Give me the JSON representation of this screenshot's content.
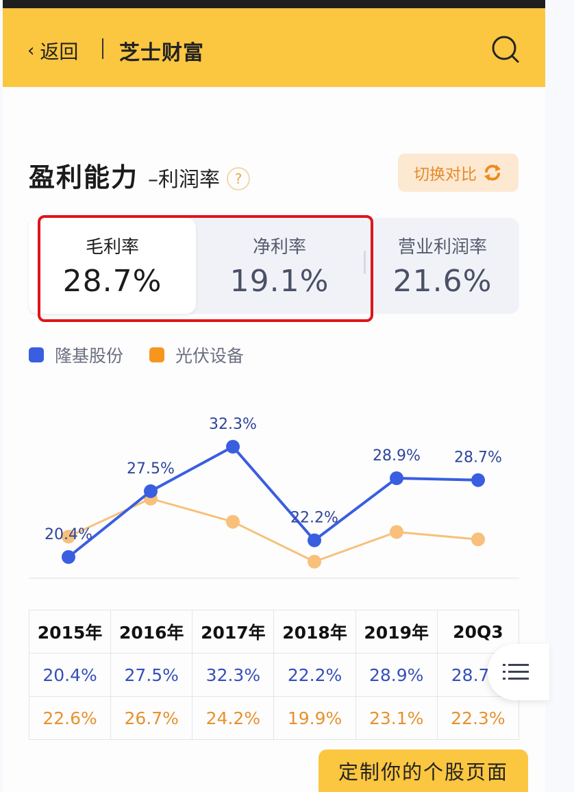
{
  "header": {
    "back_label": "返回",
    "brand": "芝士财富",
    "icons": {
      "back": "chevron-left-icon",
      "search": "search-icon"
    }
  },
  "section": {
    "title": "盈利能力",
    "subtitle": "–利润率",
    "help_glyph": "?",
    "switch_label": "切换对比"
  },
  "tabs": [
    {
      "label": "毛利率",
      "value": "28.7%",
      "active": true
    },
    {
      "label": "净利率",
      "value": "19.1%",
      "active": false
    },
    {
      "label": "营业利润率",
      "value": "21.6%",
      "active": false
    }
  ],
  "legend": [
    {
      "name": "隆基股份",
      "color": "#3a5ee0"
    },
    {
      "name": "光伏设备",
      "color": "#f7961e"
    }
  ],
  "table": {
    "headers": [
      "2015年",
      "2016年",
      "2017年",
      "2018年",
      "2019年",
      "20Q3"
    ],
    "series1": [
      "20.4%",
      "27.5%",
      "32.3%",
      "22.2%",
      "28.9%",
      "28.7"
    ],
    "series2": [
      "22.6%",
      "26.7%",
      "24.2%",
      "19.9%",
      "23.1%",
      "22.3%"
    ]
  },
  "cta_label": "定制你的个股页面",
  "chart_data": {
    "type": "line",
    "title": "毛利率",
    "categories": [
      "2015年",
      "2016年",
      "2017年",
      "2018年",
      "2019年",
      "20Q3"
    ],
    "series": [
      {
        "name": "隆基股份",
        "color": "#3a5ee0",
        "values": [
          20.4,
          27.5,
          32.3,
          22.2,
          28.9,
          28.7
        ],
        "labels": [
          "20.4%",
          "27.5%",
          "32.3%",
          "22.2%",
          "28.9%",
          "28.7%"
        ]
      },
      {
        "name": "光伏设备",
        "color": "#f8c07a",
        "values": [
          22.6,
          26.7,
          24.2,
          19.9,
          23.1,
          22.3
        ]
      }
    ],
    "xlabel": "",
    "ylabel": "",
    "grid": false,
    "legend_position": "top-left"
  }
}
